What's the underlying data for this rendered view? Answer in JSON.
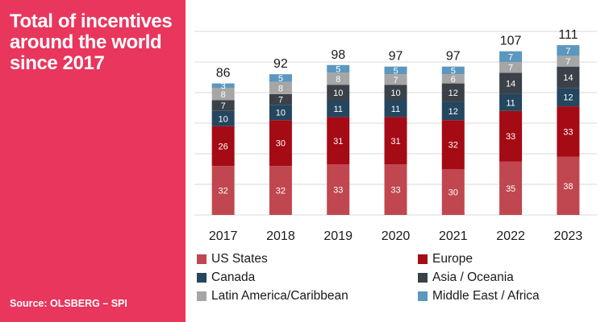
{
  "title": "Total of incentives around the world since 2017",
  "source": "Source: OLSBERG – SPI",
  "colors": {
    "panel": "#e8365d",
    "grid": "#d9d9d9"
  },
  "chart_data": {
    "type": "bar",
    "stacked": true,
    "title": "Total of incentives around the world since 2017",
    "xlabel": "",
    "ylabel": "",
    "ylim": [
      0,
      120
    ],
    "grid": true,
    "legend_position": "bottom",
    "categories": [
      "2017",
      "2018",
      "2019",
      "2020",
      "2021",
      "2022",
      "2023"
    ],
    "totals": [
      "86",
      "92",
      "98",
      "97",
      "97",
      "107",
      "111"
    ],
    "series": [
      {
        "name": "US States",
        "color": "#c0474f",
        "values": [
          32,
          32,
          33,
          33,
          30,
          35,
          38
        ]
      },
      {
        "name": "Europe",
        "color": "#a50b15",
        "values": [
          26,
          30,
          31,
          31,
          32,
          33,
          33
        ]
      },
      {
        "name": "Canada",
        "color": "#24465f",
        "values": [
          10,
          10,
          11,
          11,
          12,
          11,
          12
        ]
      },
      {
        "name": "Asia / Oceania",
        "color": "#3b4148",
        "values": [
          7,
          7,
          10,
          10,
          12,
          14,
          14
        ]
      },
      {
        "name": "Latin America/Caribbean",
        "color": "#a6a6a6",
        "values": [
          8,
          8,
          8,
          7,
          6,
          7,
          7
        ]
      },
      {
        "name": "Middle East / Africa",
        "color": "#5c97bf",
        "values": [
          3,
          5,
          5,
          5,
          5,
          7,
          7
        ]
      }
    ]
  }
}
